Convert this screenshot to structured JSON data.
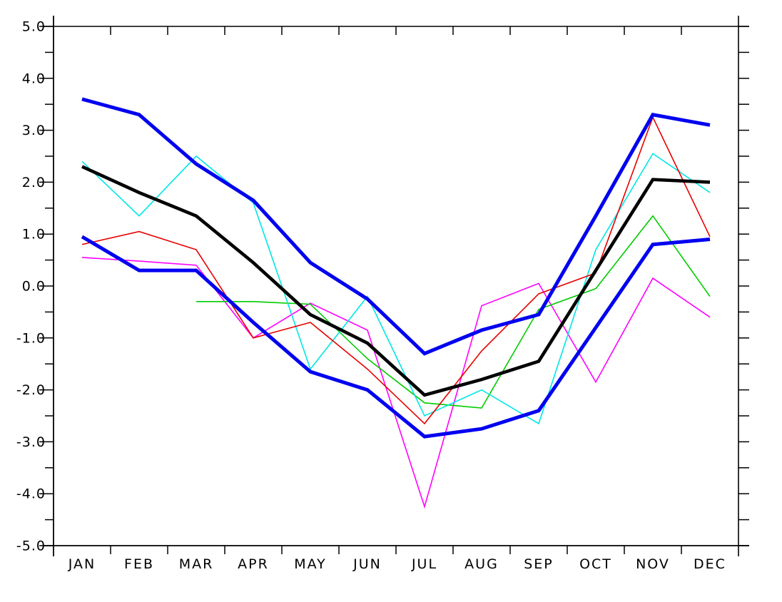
{
  "chart_data": {
    "type": "line",
    "title": "",
    "xlabel": "",
    "ylabel": "",
    "categories": [
      "JAN",
      "FEB",
      "MAR",
      "APR",
      "MAY",
      "JUN",
      "JUL",
      "AUG",
      "SEP",
      "OCT",
      "NOV",
      "DEC"
    ],
    "ylim": [
      -5.0,
      5.0
    ],
    "ytick_step": 1.0,
    "ytick_minor_step": 0.5,
    "ytick_labels": [
      "5.0",
      "4.0",
      "3.0",
      "2.0",
      "1.0",
      "0.0",
      "-1.0",
      "-2.0",
      "-3.0",
      "-4.0",
      "-5.0"
    ],
    "grid": false,
    "legend_position": "none",
    "axis_color": "#000000",
    "background_color": "#ffffff",
    "series": [
      {
        "name": "magenta-member",
        "color": "#ff00ff",
        "width": 1.6,
        "values": [
          0.55,
          0.48,
          0.4,
          -1.0,
          -0.33,
          -0.85,
          -4.25,
          -0.38,
          0.05,
          -1.85,
          0.15,
          -0.6
        ]
      },
      {
        "name": "green-member",
        "color": "#00cc00",
        "width": 1.6,
        "values": [
          null,
          null,
          -0.3,
          -0.3,
          -0.35,
          -1.4,
          -2.25,
          -2.35,
          -0.45,
          -0.05,
          1.35,
          -0.2
        ]
      },
      {
        "name": "cyan-member",
        "color": "#00e6e6",
        "width": 1.6,
        "values": [
          2.4,
          1.35,
          2.5,
          1.6,
          -1.6,
          -0.2,
          -2.5,
          -2.0,
          -2.65,
          0.7,
          2.55,
          1.8
        ]
      },
      {
        "name": "red-member",
        "color": "#e80000",
        "width": 1.6,
        "values": [
          0.8,
          1.05,
          0.7,
          -1.0,
          -0.7,
          -1.6,
          -2.65,
          -1.25,
          -0.15,
          0.25,
          3.25,
          0.95
        ]
      },
      {
        "name": "mean-line",
        "color": "#000000",
        "width": 4.6,
        "values": [
          2.3,
          1.8,
          1.35,
          0.45,
          -0.55,
          -1.1,
          -2.1,
          -1.8,
          -1.45,
          0.3,
          2.05,
          2.0
        ]
      },
      {
        "name": "envelope-upper",
        "color": "#0000f0",
        "width": 5,
        "values": [
          3.6,
          3.3,
          2.35,
          1.65,
          0.45,
          -0.25,
          -1.3,
          -0.85,
          -0.55,
          1.35,
          3.3,
          3.1
        ]
      },
      {
        "name": "envelope-lower",
        "color": "#0000f0",
        "width": 5,
        "values": [
          0.95,
          0.3,
          0.3,
          -0.7,
          -1.65,
          -2.0,
          -2.9,
          -2.75,
          -2.4,
          -0.8,
          0.8,
          0.9
        ]
      }
    ]
  }
}
